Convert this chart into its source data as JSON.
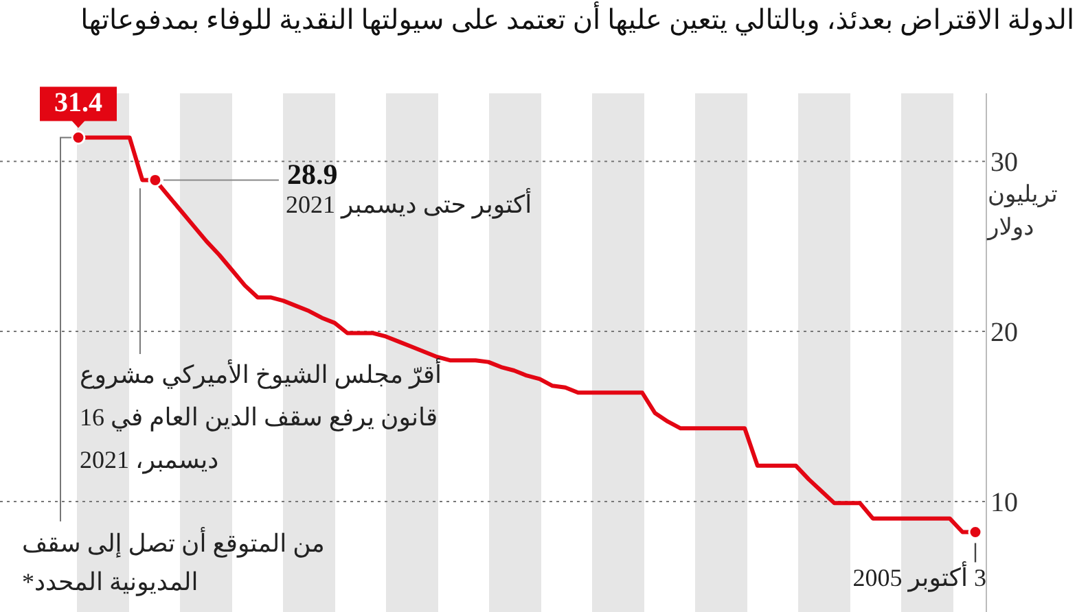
{
  "chart_data": {
    "type": "line",
    "subtitle": "الدولة الاقتراض بعدئذ، وبالتالي يتعين عليها أن تعتمد على سيولتها النقدية للوفاء بمدفوعاتها",
    "ylabel": "تريليون دولار",
    "categories": [
      null,
      null,
      null,
      null,
      null,
      null,
      null,
      null,
      null,
      null,
      null,
      null,
      null,
      null,
      null,
      null,
      null,
      null,
      null,
      null,
      null,
      null,
      null,
      null,
      null,
      null,
      null,
      null,
      null,
      null,
      null,
      null,
      null,
      null,
      null,
      null,
      null,
      null,
      null,
      null,
      null,
      null,
      null,
      null,
      null,
      null,
      null,
      null,
      null,
      null,
      null,
      null,
      null,
      null,
      null,
      null,
      null,
      null,
      null,
      null,
      null,
      null,
      null,
      null,
      null,
      null,
      null,
      null,
      null,
      null,
      null
    ],
    "ylim": [
      3.5,
      34
    ],
    "yticks": [
      10,
      20,
      30
    ],
    "tick_labels": "y",
    "grid": "y",
    "series": [
      {
        "color": "#e30613",
        "values": [
          31.4,
          31.4,
          31.4,
          31.4,
          31.4,
          28.9,
          28.9,
          28.0,
          27.1,
          26.2,
          25.3,
          24.5,
          23.6,
          22.7,
          22.0,
          22.0,
          21.8,
          21.5,
          21.2,
          20.8,
          20.5,
          19.9,
          19.9,
          19.9,
          19.7,
          19.4,
          19.1,
          18.8,
          18.5,
          18.3,
          18.3,
          18.3,
          18.2,
          17.9,
          17.7,
          17.4,
          17.2,
          16.8,
          16.7,
          16.4,
          16.4,
          16.4,
          16.4,
          16.4,
          16.4,
          15.2,
          14.7,
          14.3,
          14.3,
          14.3,
          14.3,
          14.3,
          14.3,
          12.1,
          12.1,
          12.1,
          12.1,
          11.3,
          10.6,
          9.9,
          9.9,
          9.9,
          9.0,
          9.0,
          9.0,
          9.0,
          9.0,
          9.0,
          9.0,
          8.2,
          8.2
        ]
      },
      {
        "type": "scatter",
        "color": "#e30613",
        "values": [
          31.4,
          null,
          null,
          null,
          null,
          null,
          28.9,
          null,
          null,
          null,
          null,
          null,
          null,
          null,
          null,
          null,
          null,
          null,
          null,
          null,
          null,
          null,
          null,
          null,
          null,
          null,
          null,
          null,
          null,
          null,
          null,
          null,
          null,
          null,
          null,
          null,
          null,
          null,
          null,
          null,
          null,
          null,
          null,
          null,
          null,
          null,
          null,
          null,
          null,
          null,
          null,
          null,
          null,
          null,
          null,
          null,
          null,
          null,
          null,
          null,
          null,
          null,
          null,
          null,
          null,
          null,
          null,
          null,
          null,
          null,
          8.2
        ],
        "value_labels": [
          "31.4",
          null,
          null,
          null,
          null,
          null,
          "28.9",
          null,
          null,
          null,
          null,
          null,
          null,
          null,
          null,
          null,
          null,
          null,
          null,
          null,
          null,
          null,
          null,
          null,
          null,
          null,
          null,
          null,
          null,
          null,
          null,
          null,
          null,
          null,
          null,
          null,
          null,
          null,
          null,
          null,
          null,
          null,
          null,
          null,
          null,
          null,
          null,
          null,
          null,
          null,
          null,
          null,
          null,
          null,
          null,
          null,
          null,
          null,
          null,
          null,
          null,
          null,
          null,
          null,
          null,
          null,
          null,
          null,
          null,
          null,
          null
        ]
      }
    ],
    "annotations": [
      "أكتوبر حتى ديسمبر 2021",
      "أقرّ مجلس الشيوخ الأميركي مشروع قانون يرفع سقف الدين العام في 16 ديسمبر، 2021",
      "من المتوقع أن تصل إلى سقف المديونية المحدد*",
      "3 أكتوبر 2005"
    ]
  }
}
